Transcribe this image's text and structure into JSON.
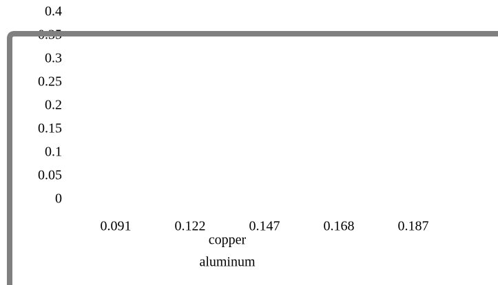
{
  "chart_data": {
    "type": "bar",
    "categories": [
      "0.091",
      "0.122",
      "0.147",
      "0.168",
      "0.187"
    ],
    "series": [
      {
        "name": "copper"
      },
      {
        "name": "aluminum"
      }
    ],
    "ylim": [
      0,
      0.4
    ],
    "yticks": [
      0,
      0.05,
      0.1,
      0.15,
      0.2,
      0.25,
      0.3,
      0.35,
      0.4
    ]
  }
}
